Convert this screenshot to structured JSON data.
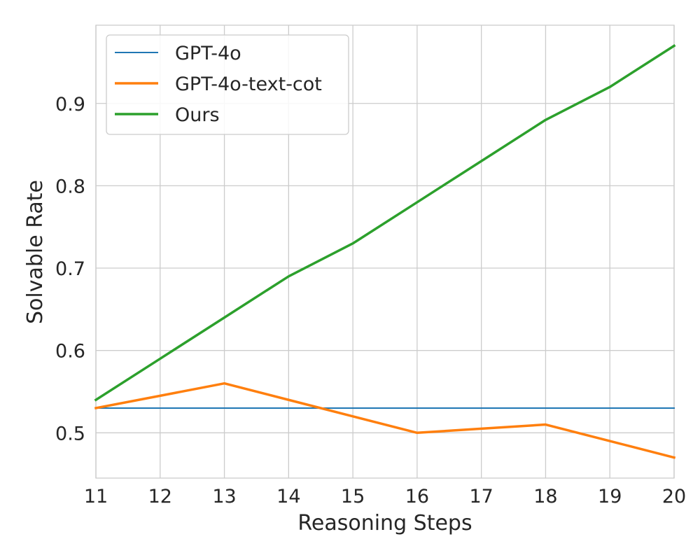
{
  "chart_data": {
    "type": "line",
    "xlabel": "Reasoning Steps",
    "ylabel": "Solvable Rate",
    "x": [
      11,
      12,
      13,
      14,
      15,
      16,
      17,
      18,
      19,
      20
    ],
    "xlim": [
      11,
      20
    ],
    "ylim": [
      0.445,
      0.995
    ],
    "xticks": [
      "11",
      "12",
      "13",
      "14",
      "15",
      "16",
      "17",
      "18",
      "19",
      "20"
    ],
    "yticks": [
      "0.5",
      "0.6",
      "0.7",
      "0.8",
      "0.9"
    ],
    "ytick_values": [
      0.5,
      0.6,
      0.7,
      0.8,
      0.9
    ],
    "grid": true,
    "legend_position": "upper-left",
    "series": [
      {
        "name": "GPT-4o",
        "color": "#1f77b4",
        "width": "thin",
        "values": [
          0.53,
          0.53,
          0.53,
          0.53,
          0.53,
          0.53,
          0.53,
          0.53,
          0.53,
          0.53
        ]
      },
      {
        "name": "GPT-4o-text-cot",
        "color": "#ff7f0e",
        "width": "thick",
        "values": [
          0.53,
          0.545,
          0.56,
          0.54,
          0.52,
          0.5,
          0.505,
          0.51,
          0.49,
          0.47
        ]
      },
      {
        "name": "Ours",
        "color": "#2ca02c",
        "width": "thick",
        "values": [
          0.54,
          0.59,
          0.64,
          0.69,
          0.73,
          0.78,
          0.83,
          0.88,
          0.92,
          0.97
        ]
      }
    ]
  }
}
